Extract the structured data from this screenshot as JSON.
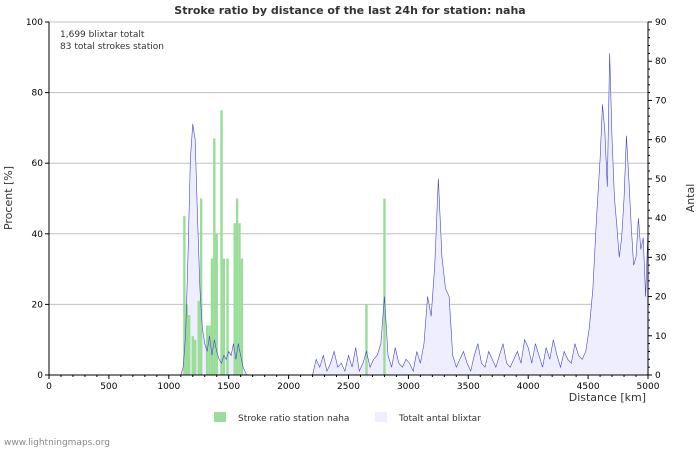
{
  "chart_data": {
    "type": "bar+area",
    "title": "Stroke ratio by distance of the last 24h for station: naha",
    "annotations": [
      "1,699 blixtar totalt",
      "83 total strokes station"
    ],
    "xlabel": "Distance   [km]",
    "ylabel_left": "Procent   [%]",
    "ylabel_right": "Antal",
    "xlim": [
      0,
      5000
    ],
    "ylim_left": [
      0,
      100
    ],
    "ylim_right": [
      0,
      90
    ],
    "x_ticks": [
      0,
      500,
      1000,
      1500,
      2000,
      2500,
      3000,
      3500,
      4000,
      4500,
      5000
    ],
    "y_left_ticks": [
      0,
      20,
      40,
      60,
      80,
      100
    ],
    "y_right_ticks": [
      0,
      10,
      20,
      30,
      40,
      50,
      60,
      70,
      80,
      90
    ],
    "grid": true,
    "legend_position": "bottom",
    "series": [
      {
        "name": "Stroke ratio station naha",
        "kind": "bar",
        "axis": "left",
        "color": "#99dd99",
        "x": [
          1130,
          1150,
          1170,
          1200,
          1220,
          1250,
          1270,
          1320,
          1340,
          1360,
          1380,
          1400,
          1440,
          1460,
          1490,
          1550,
          1570,
          1590,
          1610,
          2650,
          2800
        ],
        "values": [
          45,
          20,
          17,
          11,
          10,
          21,
          50,
          14,
          14,
          33,
          67,
          40,
          75,
          33,
          33,
          43,
          50,
          43,
          33,
          20,
          50
        ]
      },
      {
        "name": "Totalt antal blixtar",
        "kind": "area",
        "axis": "right",
        "color": "#4444cc",
        "fill": "#eeeeff",
        "x": [
          1100,
          1120,
          1140,
          1160,
          1180,
          1200,
          1220,
          1240,
          1260,
          1280,
          1300,
          1320,
          1340,
          1360,
          1380,
          1400,
          1420,
          1440,
          1460,
          1480,
          1500,
          1520,
          1540,
          1560,
          1580,
          1600,
          1620,
          1650,
          2200,
          2230,
          2260,
          2290,
          2320,
          2350,
          2380,
          2410,
          2440,
          2470,
          2500,
          2530,
          2560,
          2590,
          2620,
          2650,
          2680,
          2710,
          2740,
          2770,
          2800,
          2830,
          2860,
          2890,
          2920,
          2950,
          2980,
          3010,
          3040,
          3070,
          3100,
          3130,
          3160,
          3190,
          3220,
          3250,
          3280,
          3310,
          3340,
          3370,
          3400,
          3430,
          3460,
          3490,
          3520,
          3550,
          3580,
          3610,
          3640,
          3670,
          3700,
          3730,
          3760,
          3790,
          3820,
          3850,
          3880,
          3910,
          3940,
          3970,
          4000,
          4030,
          4060,
          4090,
          4120,
          4150,
          4180,
          4210,
          4240,
          4270,
          4300,
          4330,
          4360,
          4390,
          4420,
          4450,
          4480,
          4510,
          4540,
          4570,
          4600,
          4620,
          4640,
          4660,
          4680,
          4700,
          4720,
          4740,
          4760,
          4780,
          4800,
          4820,
          4840,
          4860,
          4880,
          4900,
          4920,
          4940,
          4960,
          4980,
          5000
        ],
        "values": [
          0,
          2,
          10,
          30,
          55,
          64,
          60,
          40,
          22,
          12,
          8,
          6,
          10,
          5,
          9,
          6,
          4,
          3,
          5,
          4,
          6,
          5,
          8,
          4,
          8,
          5,
          2,
          0,
          0,
          4,
          2,
          5,
          1,
          3,
          6,
          2,
          3,
          1,
          5,
          2,
          7,
          1,
          3,
          6,
          2,
          4,
          5,
          8,
          20,
          5,
          2,
          7,
          3,
          2,
          4,
          3,
          1,
          6,
          3,
          8,
          20,
          15,
          28,
          50,
          30,
          22,
          20,
          5,
          2,
          4,
          6,
          3,
          1,
          5,
          8,
          3,
          2,
          6,
          4,
          2,
          5,
          8,
          3,
          2,
          4,
          6,
          3,
          9,
          7,
          3,
          8,
          5,
          2,
          7,
          4,
          9,
          5,
          2,
          6,
          4,
          3,
          8,
          5,
          4,
          6,
          12,
          22,
          40,
          55,
          69,
          62,
          48,
          82,
          60,
          45,
          38,
          30,
          35,
          45,
          61,
          50,
          38,
          28,
          30,
          40,
          32,
          35,
          20,
          37
        ]
      }
    ]
  },
  "footer": "www.lightningmaps.org",
  "colors": {
    "background": "#ffffff",
    "grid": "#c0c0c0",
    "axis": "#000000",
    "bar": "#99dd99",
    "line": "#4444cc",
    "area": "#eeeeff"
  }
}
